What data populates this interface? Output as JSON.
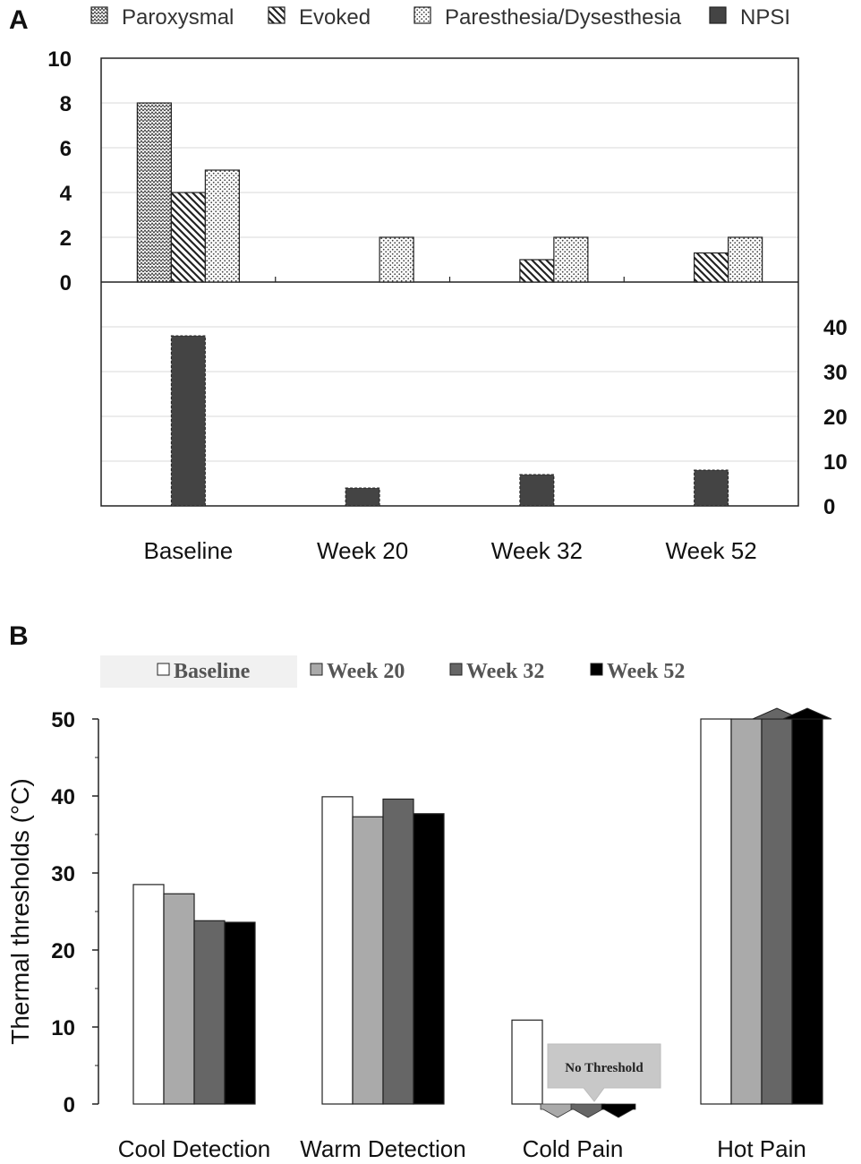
{
  "chart_data": [
    {
      "panel": "A",
      "type": "bar",
      "categories": [
        "Baseline",
        "Week 20",
        "Week 32",
        "Week 52"
      ],
      "series": [
        {
          "name": "Paroxysmal",
          "values": [
            8,
            0,
            0,
            0
          ],
          "pattern": "zigzag",
          "axis": "left"
        },
        {
          "name": "Evoked",
          "values": [
            4,
            0,
            1,
            1.3
          ],
          "pattern": "diagonal",
          "axis": "left"
        },
        {
          "name": "Paresthesia/Dysesthesia",
          "values": [
            5,
            2,
            2,
            2
          ],
          "pattern": "dots",
          "axis": "left"
        },
        {
          "name": "NPSI",
          "values": [
            38,
            4,
            7,
            8
          ],
          "pattern": "solid",
          "axis": "right"
        }
      ],
      "y_left": {
        "ylim": [
          0,
          10
        ],
        "ticks": [
          "0",
          "2",
          "4",
          "6",
          "8",
          "10"
        ]
      },
      "y_right": {
        "ylim": [
          0,
          50
        ],
        "ticks": [
          "0",
          "10",
          "20",
          "30",
          "40"
        ]
      },
      "legend_position": "top",
      "grid": true
    },
    {
      "panel": "B",
      "type": "bar",
      "categories": [
        "Cool Detection",
        "Warm Detection",
        "Cold Pain",
        "Hot Pain"
      ],
      "series": [
        {
          "name": "Baseline",
          "values": [
            28.5,
            39.9,
            10.9,
            50
          ]
        },
        {
          "name": "Week 20",
          "values": [
            27.3,
            37.3,
            0,
            50
          ]
        },
        {
          "name": "Week 32",
          "values": [
            23.8,
            39.6,
            0,
            50
          ]
        },
        {
          "name": "Week 52",
          "values": [
            23.6,
            37.7,
            0,
            50
          ]
        }
      ],
      "ylabel": "Thermal thresholds (°C)",
      "ylim": [
        0,
        50
      ],
      "ticks": [
        "0",
        "10",
        "20",
        "30",
        "40",
        "50"
      ],
      "annotations": [
        {
          "text": "No Threshold",
          "category": "Cold Pain"
        }
      ],
      "legend_position": "top",
      "grid": false
    }
  ],
  "colors": {
    "npsi": "#444444",
    "baseline": "#ffffff",
    "week20": "#aaaaaa",
    "week32": "#666666",
    "week52": "#000000",
    "grid": "#d9d9d9"
  }
}
